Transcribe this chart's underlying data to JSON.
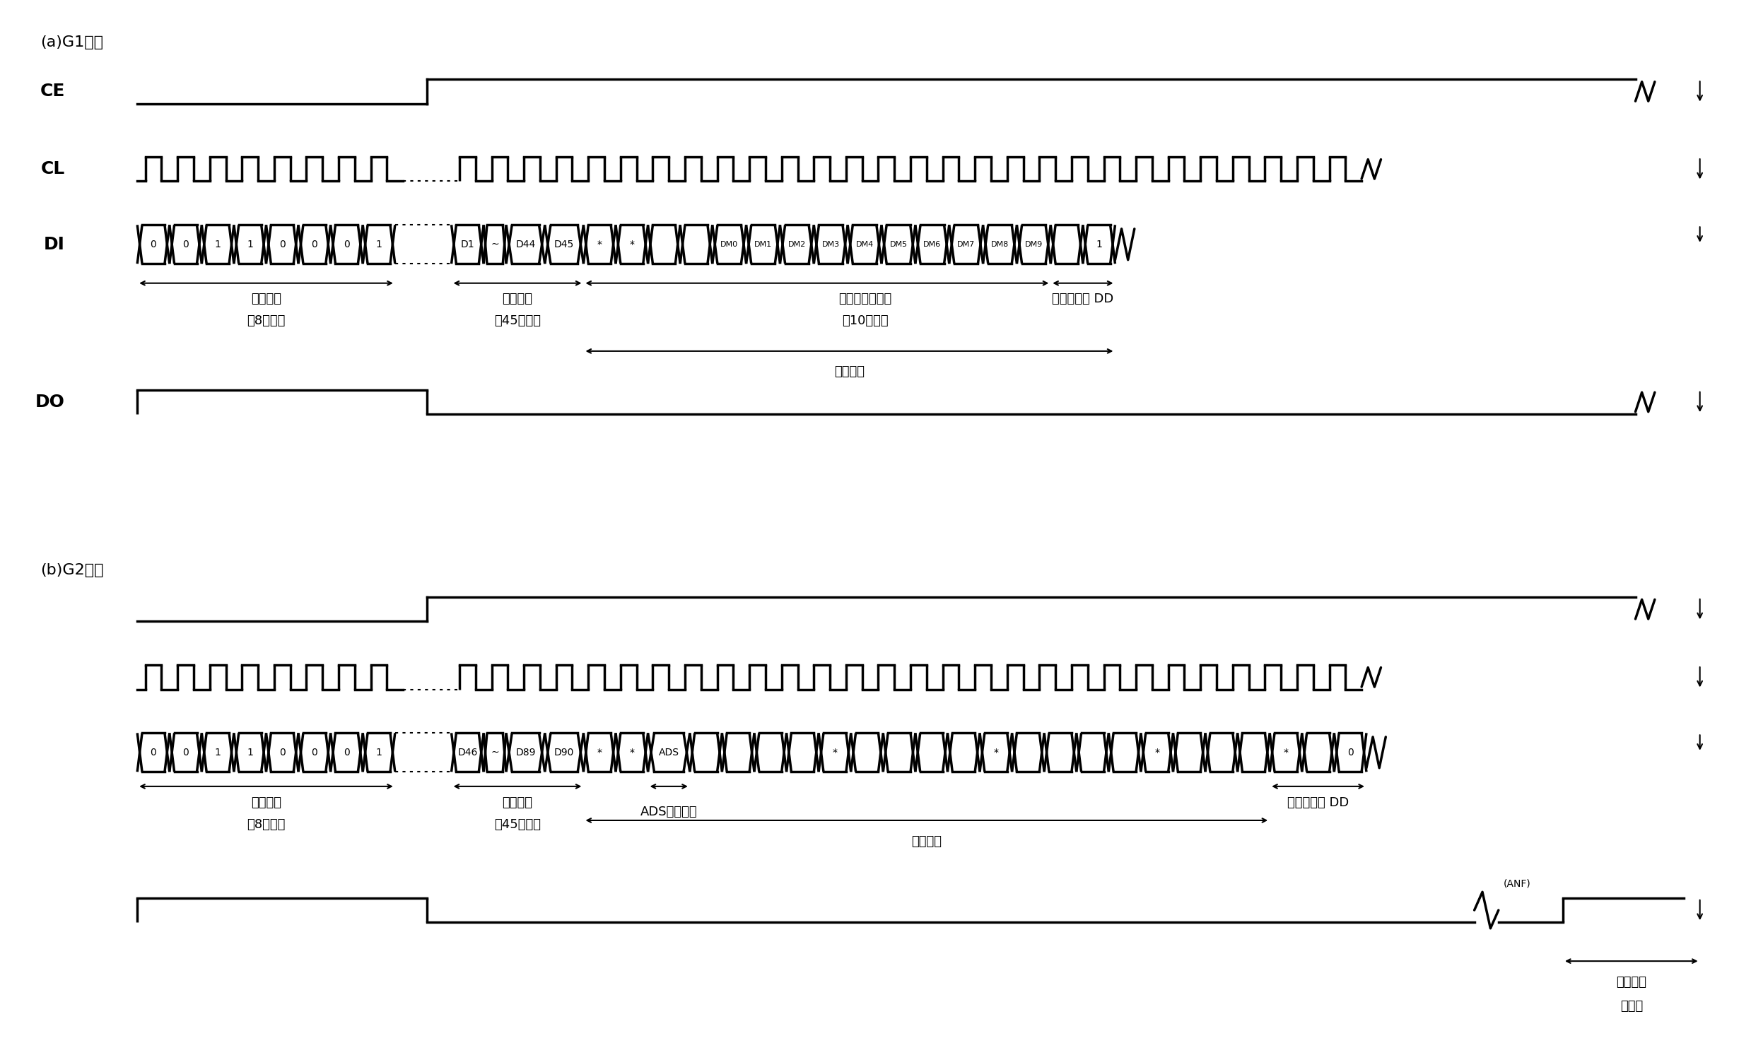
{
  "title_a": "(a)G1序列",
  "title_b": "(b)G2序列",
  "background_color": "#ffffff",
  "line_color": "#000000",
  "fig_width": 24.77,
  "fig_height": 14.93,
  "font_size_title": 16,
  "font_size_signal": 18,
  "font_size_data": 10,
  "font_size_ann": 13,
  "addr_bits": [
    "0",
    "0",
    "1",
    "1",
    "0",
    "0",
    "0",
    "1"
  ],
  "g1_di_labels": [
    "D1",
    "~",
    "D44",
    "D45",
    "*",
    "*",
    "",
    "",
    "DM0",
    "DM1",
    "DM2",
    "DM3",
    "DM4",
    "DM5",
    "DM6",
    "DM7",
    "DM8",
    "DM9",
    "",
    "1"
  ],
  "g2_di_labels": [
    "D46",
    "~",
    "D89",
    "D90",
    "*",
    "*",
    "ADS",
    "",
    "",
    "",
    "",
    "",
    "",
    "",
    "",
    "",
    "",
    "",
    "*",
    "",
    "*",
    "",
    "*",
    "",
    "0"
  ]
}
